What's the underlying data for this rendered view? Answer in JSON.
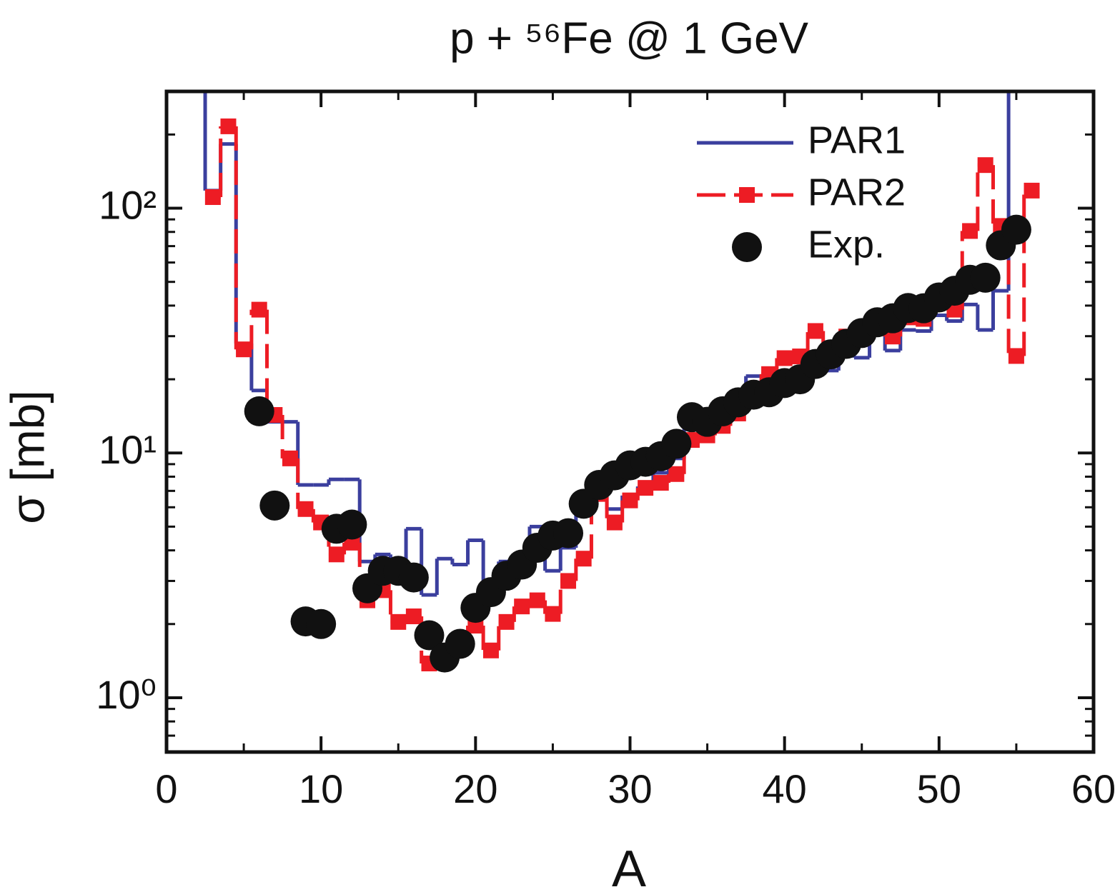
{
  "chart_data": {
    "type": "step",
    "title": "p + ⁵⁶Fe @ 1 GeV",
    "x_label": "A",
    "y_label": "σ [mb]",
    "xlim": [
      0,
      60
    ],
    "xticks": [
      0,
      10,
      20,
      30,
      40,
      50,
      60
    ],
    "xminor": [
      5,
      15,
      25,
      35,
      45,
      55
    ],
    "ylim": [
      0.6,
      300
    ],
    "yscale": "log",
    "yticks": [
      {
        "value": 1,
        "label": "10⁰"
      },
      {
        "value": 10,
        "label": "10¹"
      },
      {
        "value": 100,
        "label": "10²"
      }
    ],
    "yminor": [
      0.7,
      0.8,
      0.9,
      2,
      3,
      4,
      5,
      6,
      7,
      8,
      9,
      20,
      30,
      40,
      50,
      60,
      70,
      80,
      90,
      200
    ],
    "legend": "upper right",
    "series": [
      {
        "name": "PAR1",
        "color": "#3b3f9e",
        "drawstyle": "steps-mid",
        "linestyle": "solid",
        "marker": "none",
        "x": [
          2,
          3,
          4,
          5,
          6,
          7,
          8,
          9,
          10,
          11,
          12,
          13,
          14,
          15,
          16,
          17,
          18,
          19,
          20,
          21,
          22,
          23,
          24,
          25,
          26,
          27,
          28,
          29,
          30,
          31,
          32,
          33,
          34,
          35,
          36,
          37,
          38,
          39,
          40,
          41,
          42,
          43,
          44,
          45,
          46,
          47,
          48,
          49,
          50,
          51,
          52,
          53,
          54,
          55
        ],
        "values": [
          400,
          118,
          183,
          28,
          18,
          13.4,
          13.4,
          7.4,
          7.4,
          7.8,
          7.8,
          3.6,
          3.85,
          3.6,
          4.9,
          2.63,
          3.7,
          3.5,
          4.4,
          2.46,
          3.6,
          3.6,
          5.0,
          3.3,
          4.1,
          5.65,
          7.9,
          5.9,
          6.7,
          7.3,
          8.3,
          9.5,
          12.9,
          12.1,
          14.3,
          15.3,
          20.6,
          18.7,
          18.0,
          21.3,
          22.9,
          21.7,
          25.3,
          24.5,
          30.9,
          26.2,
          31.8,
          31.5,
          36.5,
          34.6,
          40.4,
          31.8,
          46,
          400
        ]
      },
      {
        "name": "PAR2",
        "color": "#ed1c24",
        "drawstyle": "steps-mid",
        "linestyle": "dashed",
        "marker": "square",
        "x": [
          3,
          4,
          5,
          6,
          7,
          8,
          9,
          10,
          11,
          12,
          13,
          14,
          15,
          16,
          17,
          18,
          19,
          20,
          21,
          22,
          23,
          24,
          25,
          26,
          27,
          28,
          29,
          30,
          31,
          32,
          33,
          34,
          35,
          36,
          37,
          38,
          39,
          40,
          41,
          42,
          43,
          44,
          45,
          46,
          47,
          48,
          49,
          50,
          51,
          52,
          53,
          54,
          55,
          56
        ],
        "values": [
          111,
          216,
          26.5,
          38.5,
          14.3,
          9.5,
          5.9,
          5.2,
          3.85,
          4.3,
          2.5,
          2.75,
          2.04,
          2.15,
          1.38,
          1.5,
          1.61,
          1.97,
          1.56,
          2.04,
          2.36,
          2.5,
          2.2,
          3.0,
          3.7,
          6.8,
          5.2,
          6.4,
          7.2,
          7.55,
          8.2,
          11.3,
          11.8,
          12.9,
          14.5,
          17.4,
          21.0,
          24.4,
          24.8,
          31.5,
          24.8,
          29.9,
          29.5,
          33,
          29.9,
          35.8,
          35.3,
          44.7,
          38.5,
          80.7,
          150,
          84.6,
          24.9,
          118
        ]
      },
      {
        "name": "Exp.",
        "color": "#111111",
        "drawstyle": "none",
        "linestyle": "none",
        "marker": "circle",
        "x": [
          6,
          7,
          9,
          10,
          11,
          12,
          13,
          14,
          15,
          16,
          17,
          18,
          19,
          20,
          21,
          22,
          23,
          24,
          25,
          26,
          27,
          28,
          29,
          30,
          31,
          32,
          33,
          34,
          35,
          36,
          37,
          38,
          39,
          40,
          41,
          42,
          43,
          44,
          45,
          46,
          47,
          48,
          49,
          50,
          51,
          52,
          53,
          54,
          55
        ],
        "values": [
          14.8,
          6.1,
          2.05,
          2.0,
          4.9,
          5.1,
          2.8,
          3.3,
          3.3,
          3.1,
          1.8,
          1.46,
          1.66,
          2.33,
          2.7,
          3.15,
          3.5,
          4.1,
          4.6,
          4.7,
          6.2,
          7.4,
          8.1,
          8.9,
          9.2,
          9.7,
          10.9,
          14.0,
          13.4,
          14.8,
          16.1,
          17.3,
          17.7,
          19.3,
          20.0,
          23.1,
          25.3,
          27.9,
          30.9,
          34.2,
          35.5,
          39.1,
          39,
          43.2,
          46,
          51,
          52,
          70.5,
          81.7
        ]
      }
    ]
  }
}
